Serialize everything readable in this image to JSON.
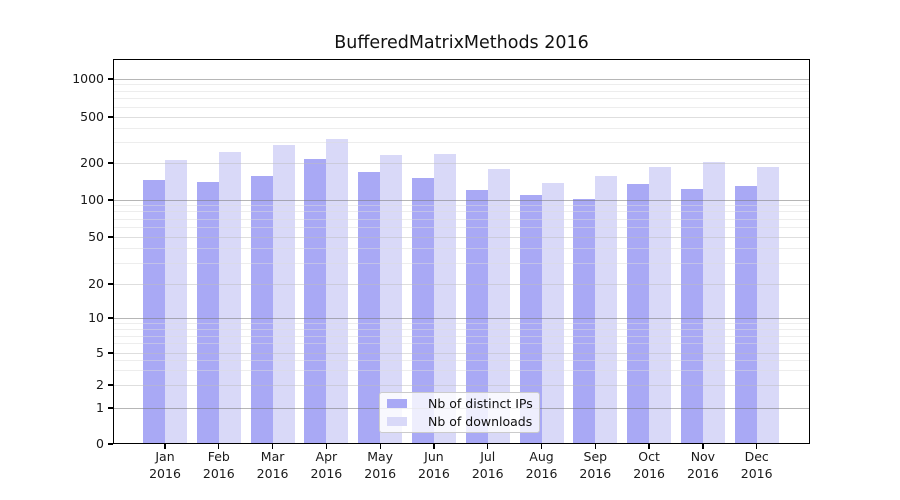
{
  "figure": {
    "title": "BufferedMatrixMethods 2016"
  },
  "chart_data": {
    "type": "bar",
    "title": "BufferedMatrixMethods 2016",
    "categories": [
      "Jan 2016",
      "Feb 2016",
      "Mar 2016",
      "Apr 2016",
      "May 2016",
      "Jun 2016",
      "Jul 2016",
      "Aug 2016",
      "Sep 2016",
      "Oct 2016",
      "Nov 2016",
      "Dec 2016"
    ],
    "months": [
      "Jan",
      "Feb",
      "Mar",
      "Apr",
      "May",
      "Jun",
      "Jul",
      "Aug",
      "Sep",
      "Oct",
      "Nov",
      "Dec"
    ],
    "year": "2016",
    "series": [
      {
        "name": "Nb of distinct IPs",
        "color": "#a9a9f5",
        "values": [
          146,
          140,
          158,
          215,
          168,
          152,
          121,
          110,
          102,
          135,
          124,
          130
        ]
      },
      {
        "name": "Nb of downloads",
        "color": "#d9d9f8",
        "values": [
          213,
          248,
          285,
          324,
          233,
          238,
          178,
          138,
          157,
          186,
          204,
          186
        ]
      }
    ],
    "y_scale": "symlog",
    "y_ticks": [
      0,
      1,
      2,
      5,
      10,
      20,
      50,
      100,
      200,
      500,
      1000
    ],
    "ylim": [
      0,
      1450
    ],
    "xlabel": "",
    "ylabel": "",
    "grid": true,
    "legend_position": "lower center"
  },
  "colors": {
    "bar_distinct_ips": "#a9a9f5",
    "bar_downloads": "#d9d9f8",
    "grid_major": "#7a7a7a",
    "grid_labeled": "#bdbdbd",
    "grid_minor": "#dcdcdc",
    "axis": "#000000",
    "text": "#111111"
  }
}
